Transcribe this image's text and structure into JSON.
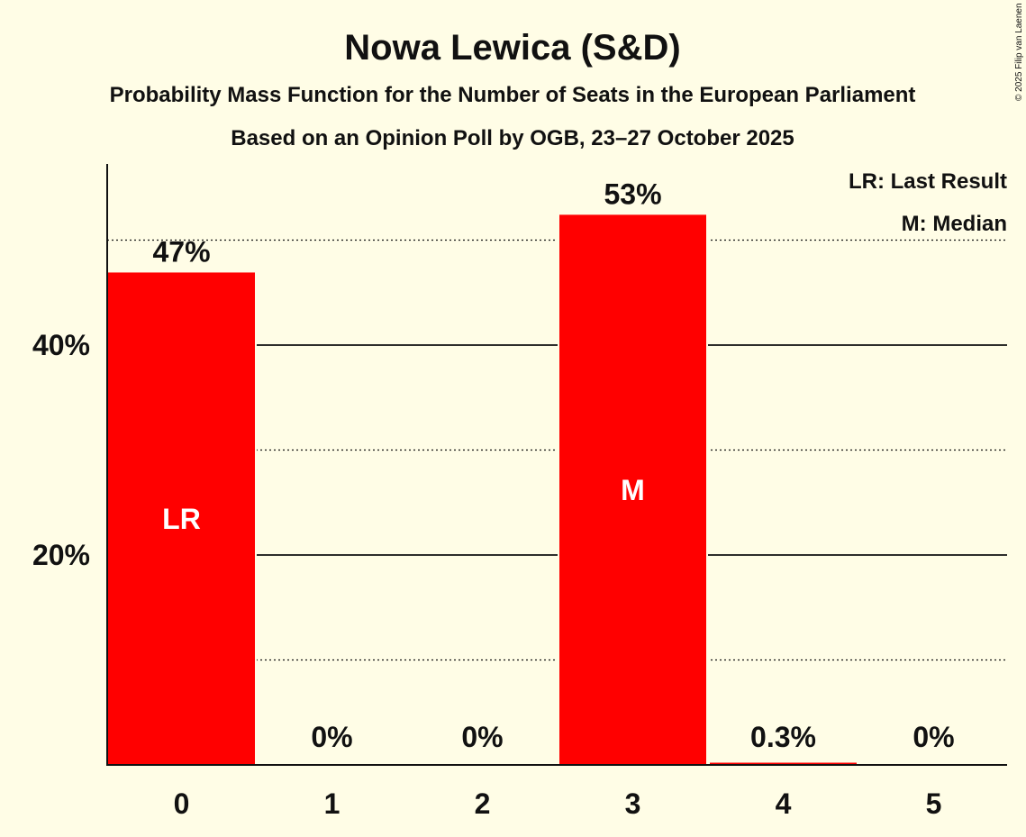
{
  "copyright": "© 2025 Filip van Laenen",
  "colors": {
    "bar": "#FF0000",
    "background": "#FFFDE6",
    "text": "#111111"
  },
  "chart_data": {
    "type": "bar",
    "title": "Nowa Lewica (S&D)",
    "subtitle": "Probability Mass Function for the Number of Seats in the European Parliament",
    "subtitle2": "Based on an Opinion Poll by OGB, 23–27 October 2025",
    "xlabel": "",
    "ylabel": "",
    "categories": [
      "0",
      "1",
      "2",
      "3",
      "4",
      "5"
    ],
    "values": [
      47,
      0,
      0,
      52.5,
      0.3,
      0
    ],
    "data_labels": [
      "47%",
      "0%",
      "0%",
      "53%",
      "0.3%",
      "0%"
    ],
    "bar_annotations": {
      "0": "LR",
      "3": "M"
    },
    "ylim": [
      0,
      57
    ],
    "y_ticks": [
      {
        "value": 20,
        "label": "20%"
      },
      {
        "value": 40,
        "label": "40%"
      }
    ],
    "y_minor_dotted": [
      10,
      30,
      50
    ],
    "legend": [
      "LR: Last Result",
      "M: Median"
    ],
    "legend_position": "top-right"
  }
}
